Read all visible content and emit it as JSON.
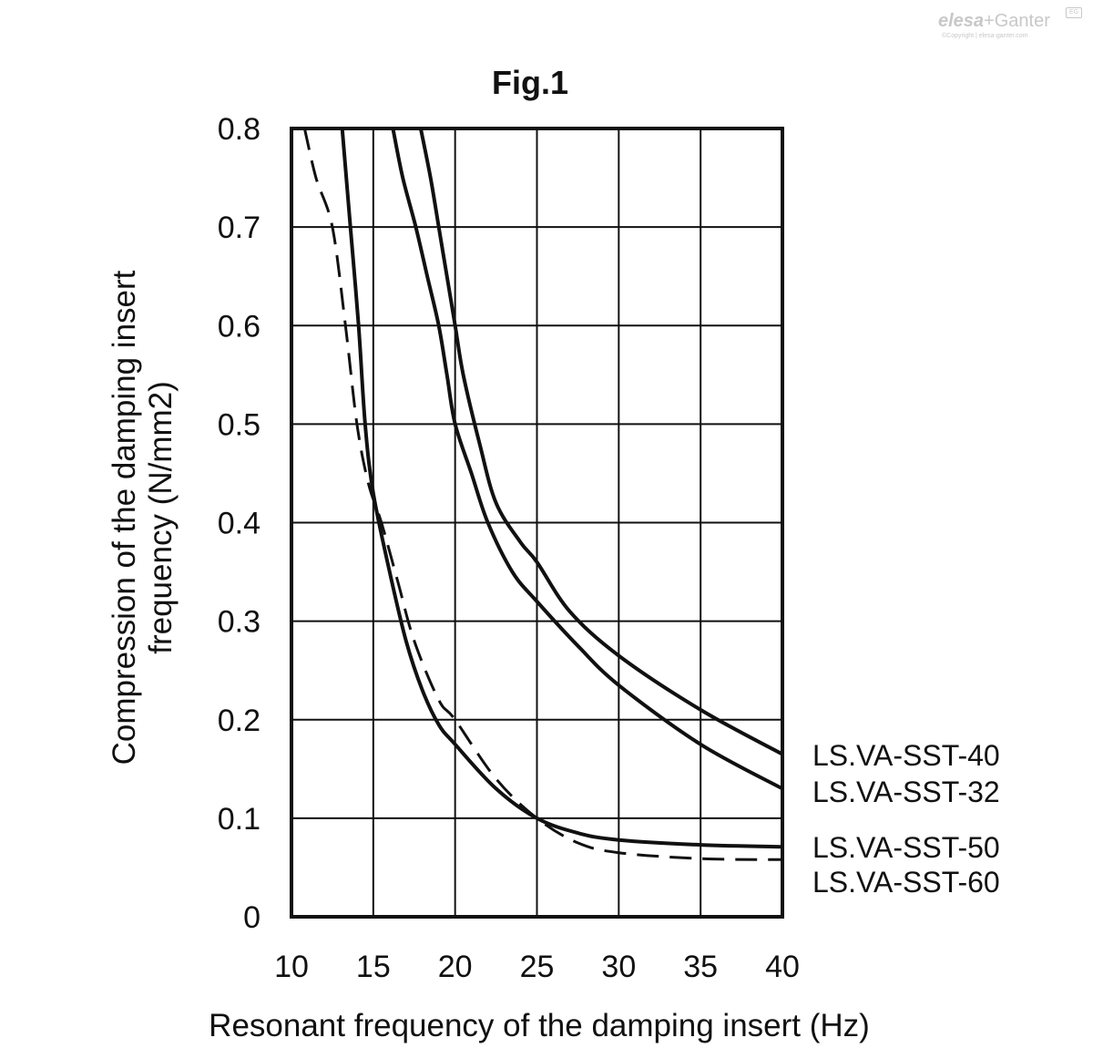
{
  "logo": {
    "brand_a": "elesa",
    "plus": "+",
    "brand_b": "Ganter",
    "mark": "EG",
    "copyright": "©Copyright | elesa-ganter.com"
  },
  "chart_data": {
    "type": "line",
    "title": "Fig.1",
    "xlabel": "Resonant frequency of the damping insert (Hz)",
    "ylabel_lines": [
      "Compression of the damping insert",
      "frequency (N/mm2)"
    ],
    "xlim": [
      10,
      40
    ],
    "ylim": [
      0,
      0.8
    ],
    "xticks": [
      10,
      15,
      20,
      25,
      30,
      35,
      40
    ],
    "yticks": [
      0,
      0.1,
      0.2,
      0.3,
      0.4,
      0.5,
      0.6,
      0.7,
      0.8
    ],
    "xtick_labels": [
      "10",
      "15",
      "20",
      "25",
      "30",
      "35",
      "40"
    ],
    "ytick_labels": [
      "0",
      "0.1",
      "0.2",
      "0.3",
      "0.4",
      "0.5",
      "0.6",
      "0.7",
      "0.8"
    ],
    "grid": true,
    "legend": "right",
    "series": [
      {
        "name": "LS.VA-SST-40",
        "dash": false,
        "points": [
          [
            17.9,
            0.8
          ],
          [
            18.5,
            0.75
          ],
          [
            19.0,
            0.7
          ],
          [
            19.5,
            0.65
          ],
          [
            20.0,
            0.6
          ],
          [
            20.5,
            0.55
          ],
          [
            21.5,
            0.48
          ],
          [
            22.5,
            0.42
          ],
          [
            24.0,
            0.38
          ],
          [
            25.0,
            0.36
          ],
          [
            27.0,
            0.31
          ],
          [
            30.0,
            0.265
          ],
          [
            35.0,
            0.21
          ],
          [
            40.0,
            0.165
          ]
        ]
      },
      {
        "name": "LS.VA-SST-32",
        "dash": false,
        "points": [
          [
            16.2,
            0.8
          ],
          [
            16.8,
            0.75
          ],
          [
            17.6,
            0.7
          ],
          [
            18.3,
            0.65
          ],
          [
            19.0,
            0.6
          ],
          [
            19.5,
            0.55
          ],
          [
            20.0,
            0.5
          ],
          [
            21.0,
            0.45
          ],
          [
            22.0,
            0.4
          ],
          [
            23.5,
            0.35
          ],
          [
            25.0,
            0.32
          ],
          [
            27.5,
            0.275
          ],
          [
            30.0,
            0.235
          ],
          [
            35.0,
            0.175
          ],
          [
            40.0,
            0.13
          ]
        ]
      },
      {
        "name": "LS.VA-SST-50",
        "dash": false,
        "points": [
          [
            13.1,
            0.8
          ],
          [
            13.6,
            0.7
          ],
          [
            14.1,
            0.6
          ],
          [
            14.5,
            0.5
          ],
          [
            15.0,
            0.43
          ],
          [
            16.0,
            0.35
          ],
          [
            17.0,
            0.28
          ],
          [
            18.0,
            0.23
          ],
          [
            19.0,
            0.195
          ],
          [
            20.0,
            0.175
          ],
          [
            22.5,
            0.13
          ],
          [
            25.0,
            0.1
          ],
          [
            27.5,
            0.085
          ],
          [
            30.0,
            0.078
          ],
          [
            35.0,
            0.073
          ],
          [
            40.0,
            0.071
          ]
        ]
      },
      {
        "name": "LS.VA-SST-60",
        "dash": true,
        "points": [
          [
            10.8,
            0.8
          ],
          [
            11.5,
            0.75
          ],
          [
            12.5,
            0.7
          ],
          [
            13.3,
            0.6
          ],
          [
            14.0,
            0.5
          ],
          [
            14.7,
            0.44
          ],
          [
            15.5,
            0.4
          ],
          [
            16.5,
            0.34
          ],
          [
            17.5,
            0.28
          ],
          [
            19.0,
            0.22
          ],
          [
            20.0,
            0.2
          ],
          [
            22.5,
            0.14
          ],
          [
            25.0,
            0.1
          ],
          [
            27.5,
            0.075
          ],
          [
            30.0,
            0.065
          ],
          [
            35.0,
            0.059
          ],
          [
            40.0,
            0.058
          ]
        ]
      }
    ]
  }
}
